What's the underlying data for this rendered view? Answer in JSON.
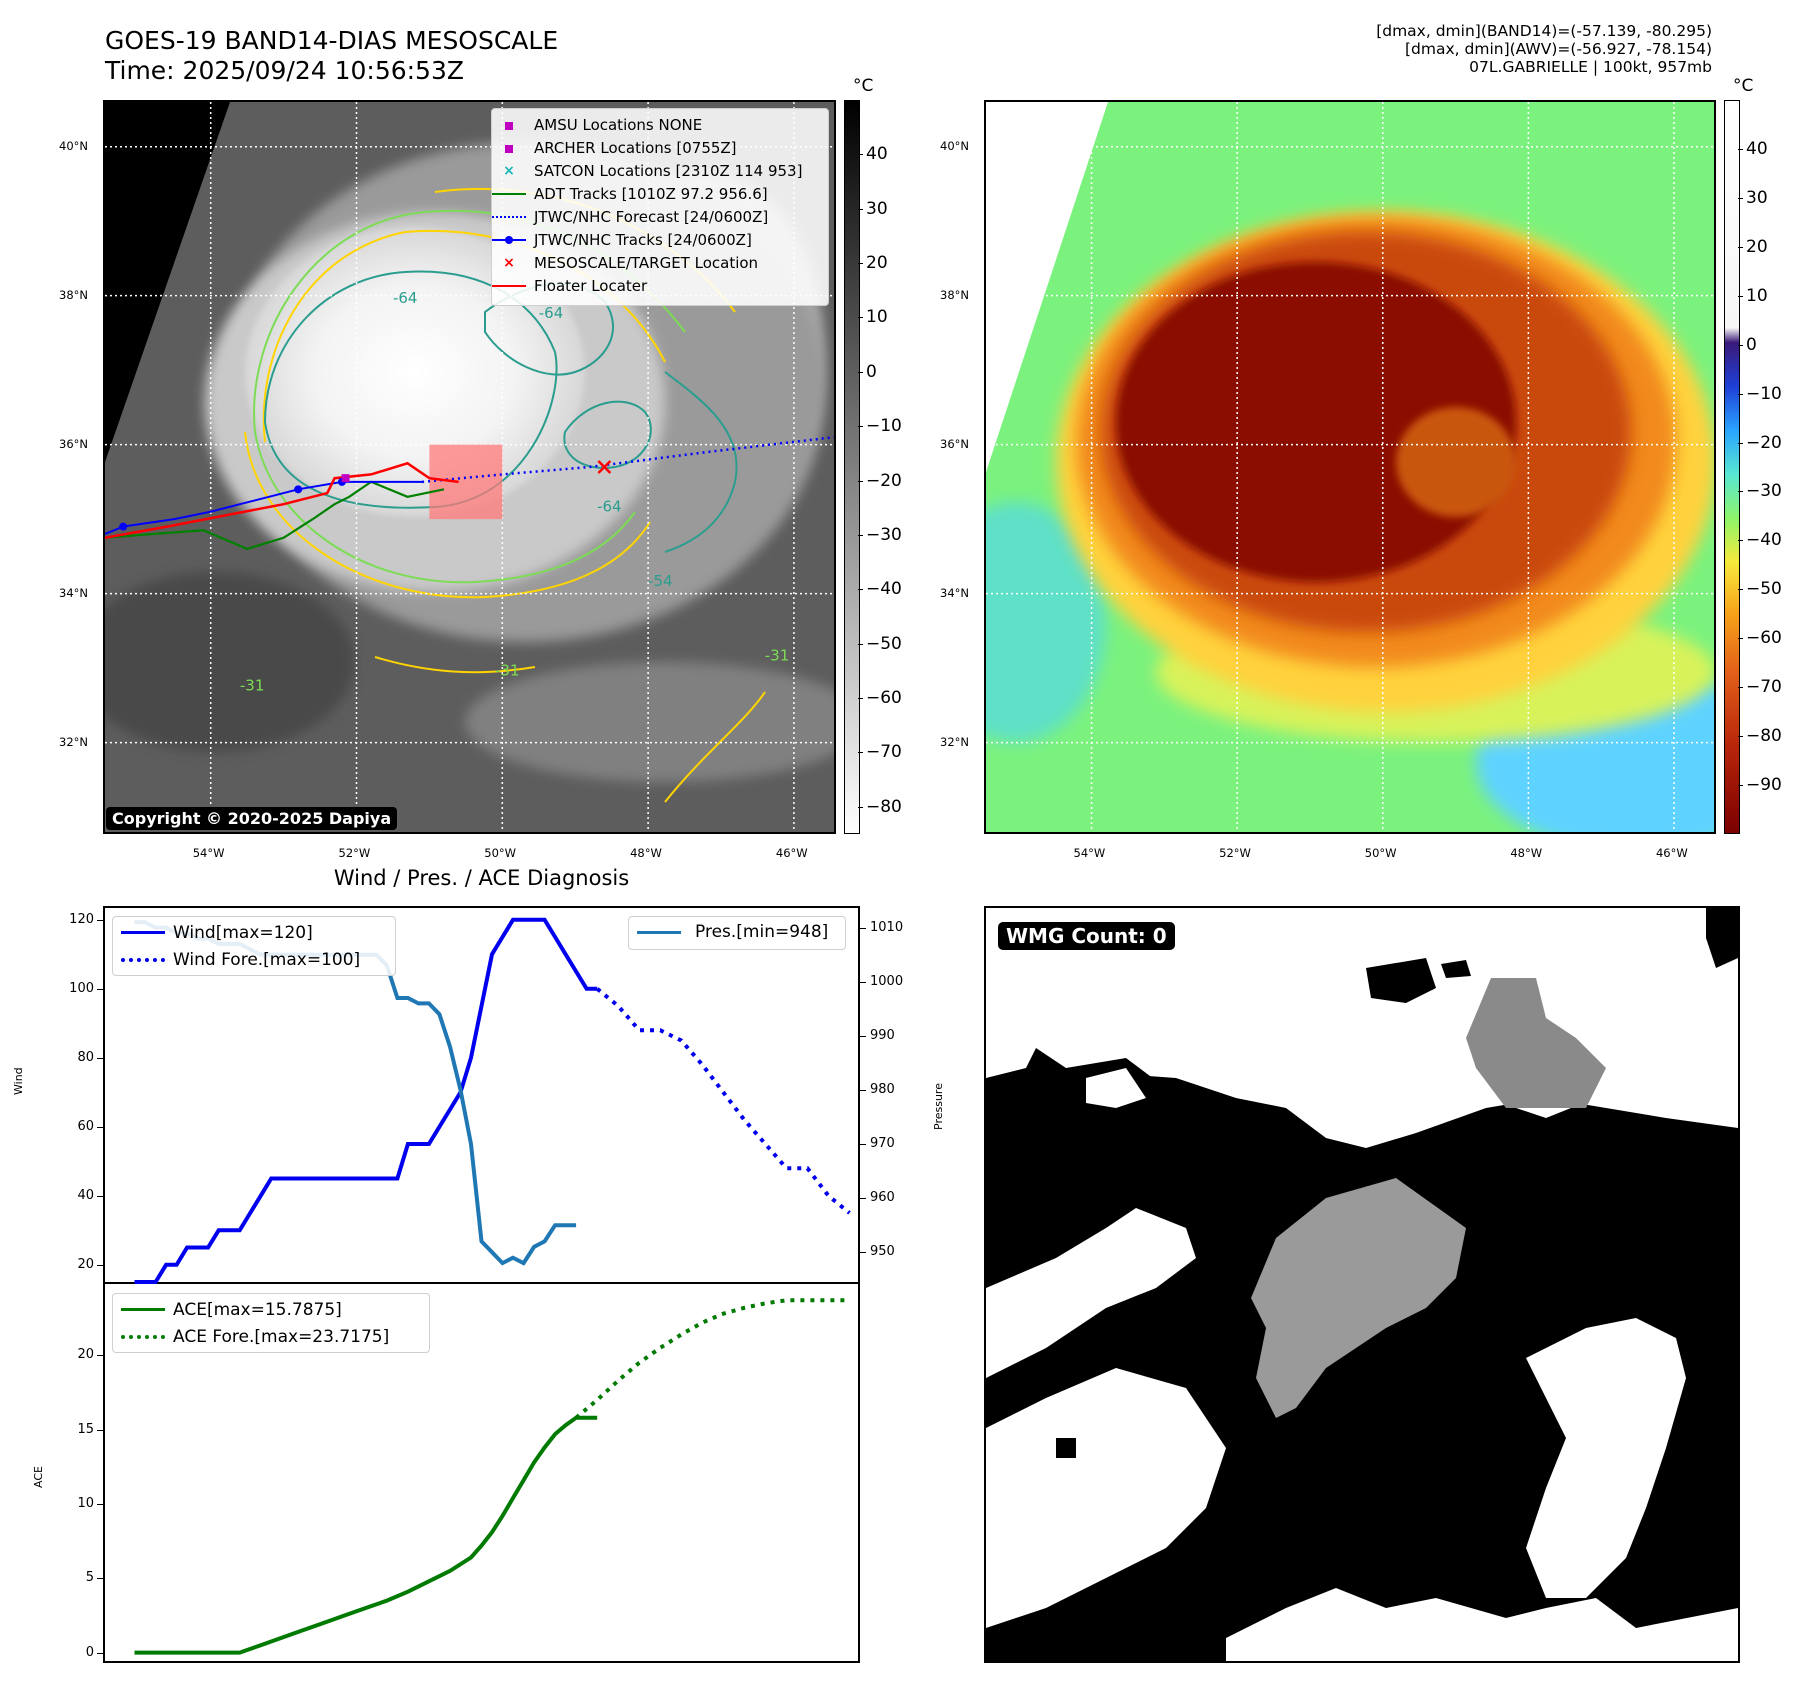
{
  "header": {
    "title_line1": "GOES-19 BAND14-DIAS MESOSCALE",
    "title_line2": "Time: 2025/09/24 10:56:53Z",
    "info_line1": "[dmax, dmin](BAND14)=(-57.139, -80.295)",
    "info_line2": "[dmax, dmin](AWV)=(-56.927, -78.154)",
    "info_line3": "07L.GABRIELLE | 100kt, 957mb"
  },
  "maps": {
    "lat_labels": [
      "40°N",
      "38°N",
      "36°N",
      "34°N",
      "32°N"
    ],
    "lat_values": [
      40,
      38,
      36,
      34,
      32
    ],
    "lon_labels": [
      "54°W",
      "52°W",
      "50°W",
      "48°W",
      "46°W"
    ],
    "lon_values": [
      -54,
      -52,
      -50,
      -48,
      -46
    ],
    "extent": {
      "lon": [
        -55.45,
        -45.45
      ],
      "lat": [
        30.8,
        40.6
      ]
    },
    "colorbar_unit": "°C",
    "copyright": "Copyright © 2020-2025 Dapiya",
    "left_colorbar_ticks": [
      40,
      30,
      20,
      10,
      0,
      -10,
      -20,
      -30,
      -40,
      -50,
      -60,
      -70,
      -80
    ],
    "left_colorbar_range": [
      -85,
      50
    ],
    "right_colorbar_ticks": [
      40,
      30,
      20,
      10,
      0,
      -10,
      -20,
      -30,
      -40,
      -50,
      -60,
      -70,
      -80,
      -90
    ],
    "right_colorbar_range": [
      -100,
      50
    ],
    "contour_labels": [
      "-64",
      "-64",
      "-64",
      "-54",
      "-31",
      "-31",
      "-31"
    ],
    "legend": [
      {
        "label": "AMSU Locations NONE",
        "icon": "magenta-square-marker",
        "color": "#c000c0"
      },
      {
        "label": "ARCHER Locations [0755Z]",
        "icon": "magenta-square-marker",
        "color": "#c000c0"
      },
      {
        "label": "SATCON Locations [2310Z 114 953]",
        "icon": "cyan-x-marker",
        "color": "#17b6b6"
      },
      {
        "label": "ADT Tracks [1010Z 97.2 956.6]",
        "icon": "green-line",
        "color": "#008000"
      },
      {
        "label": "JTWC/NHC Forecast [24/0600Z]",
        "icon": "blue-dotted-line",
        "color": "#0000ff"
      },
      {
        "label": "JTWC/NHC Tracks [24/0600Z]",
        "icon": "blue-line-dot",
        "color": "#0000ff"
      },
      {
        "label": "MESOSCALE/TARGET Location",
        "icon": "red-x-marker",
        "color": "#ff0000"
      },
      {
        "label": "Floater Locater",
        "icon": "red-line",
        "color": "#ff0000"
      }
    ],
    "tracks": {
      "jtwc_track": [
        [
          -55.45,
          34.8
        ],
        [
          -55.2,
          34.9
        ],
        [
          -54.5,
          35.0
        ],
        [
          -54.0,
          35.1
        ],
        [
          -53.6,
          35.2
        ],
        [
          -53.2,
          35.3
        ],
        [
          -52.8,
          35.4
        ],
        [
          -52.2,
          35.5
        ],
        [
          -51.6,
          35.5
        ],
        [
          -51.1,
          35.5
        ]
      ],
      "jtwc_forecast": [
        [
          -51.1,
          35.5
        ],
        [
          -50.0,
          35.6
        ],
        [
          -48.8,
          35.7
        ],
        [
          -47.2,
          35.9
        ],
        [
          -45.45,
          36.1
        ]
      ],
      "adt_track": [
        [
          -55.45,
          34.75
        ],
        [
          -54.8,
          34.8
        ],
        [
          -54.1,
          34.85
        ],
        [
          -53.5,
          34.6
        ],
        [
          -53.0,
          34.75
        ],
        [
          -52.6,
          35.0
        ],
        [
          -52.3,
          35.2
        ],
        [
          -52.1,
          35.3
        ],
        [
          -51.8,
          35.5
        ],
        [
          -51.3,
          35.3
        ],
        [
          -50.8,
          35.4
        ]
      ],
      "floater": [
        [
          -55.45,
          34.75
        ],
        [
          -54.6,
          34.9
        ],
        [
          -53.8,
          35.05
        ],
        [
          -53.0,
          35.2
        ],
        [
          -52.4,
          35.35
        ],
        [
          -52.3,
          35.55
        ],
        [
          -51.8,
          35.6
        ],
        [
          -51.3,
          35.75
        ],
        [
          -51.0,
          35.55
        ],
        [
          -50.6,
          35.5
        ]
      ],
      "target": [
        -48.6,
        35.7
      ],
      "jtwc_points": [
        [
          -55.2,
          34.9
        ],
        [
          -52.8,
          35.4
        ],
        [
          -52.2,
          35.5
        ]
      ]
    }
  },
  "lower_left": {
    "title": "Wind / Pres. / ACE Diagnosis",
    "wind_axis_label": "Wind",
    "pressure_axis_label": "Pressure",
    "ace_axis_label": "ACE",
    "wind_ticks": [
      20,
      40,
      60,
      80,
      100,
      120
    ],
    "pressure_ticks": [
      950,
      960,
      970,
      980,
      990,
      1000,
      1010
    ],
    "ace_ticks": [
      0,
      5,
      10,
      15,
      20
    ],
    "legend_wind": "Wind[max=120]",
    "legend_wind_fore": "Wind Fore.[max=100]",
    "legend_pres": "Pres.[min=948]",
    "legend_ace": "ACE[max=15.7875]",
    "legend_ace_fore": "ACE Fore.[max=23.7175]",
    "colors": {
      "wind": "#0000ee",
      "pressure": "#1f77b4",
      "ace": "#007a00"
    }
  },
  "chart_data": [
    {
      "type": "line",
      "title": "Wind / Pres. / ACE Diagnosis",
      "ylabel": "Wind",
      "y2label": "Pressure",
      "ylim": [
        15,
        124
      ],
      "y2lim": [
        944.5,
        1014
      ],
      "xlim": [
        -1,
        71
      ],
      "series": [
        {
          "name": "Wind[max=120]",
          "axis": "left",
          "style": "solid",
          "x": [
            2,
            4,
            5,
            6,
            7,
            8,
            9,
            10,
            11,
            12,
            13,
            14,
            15,
            16,
            17,
            18,
            19,
            20,
            21,
            22,
            23,
            24,
            25,
            26,
            27,
            28,
            29,
            30,
            31,
            32,
            33,
            34,
            35,
            36,
            37,
            38,
            39,
            40,
            41,
            42,
            43,
            44,
            45,
            46
          ],
          "y": [
            15,
            15,
            20,
            20,
            25,
            25,
            25,
            30,
            30,
            30,
            35,
            40,
            45,
            45,
            45,
            45,
            45,
            45,
            45,
            45,
            45,
            45,
            45,
            45,
            45,
            55,
            55,
            55,
            60,
            65,
            70,
            80,
            95,
            110,
            115,
            120,
            120,
            120,
            120,
            115,
            110,
            105,
            100,
            100
          ]
        },
        {
          "name": "Wind Fore.[max=100]",
          "axis": "left",
          "style": "dotted",
          "x": [
            46,
            48,
            50,
            52,
            54,
            56,
            58,
            60,
            62,
            64,
            66,
            68,
            70
          ],
          "y": [
            100,
            95,
            88,
            88,
            85,
            78,
            70,
            62,
            55,
            48,
            48,
            40,
            35
          ]
        },
        {
          "name": "Pres.[min=948]",
          "axis": "right",
          "style": "solid",
          "x": [
            2,
            3,
            4,
            5,
            6,
            7,
            8,
            9,
            10,
            11,
            12,
            13,
            14,
            15,
            16,
            17,
            18,
            19,
            20,
            21,
            22,
            23,
            24,
            25,
            26,
            27,
            28,
            29,
            30,
            31,
            32,
            33,
            34,
            35,
            36,
            37,
            38,
            39,
            40,
            41,
            42,
            43,
            44
          ],
          "y": [
            1011,
            1011,
            1010,
            1010,
            1009,
            1009,
            1008,
            1008,
            1007,
            1007,
            1007,
            1006,
            1005,
            1005,
            1005,
            1005,
            1005,
            1005,
            1005,
            1005,
            1005,
            1005,
            1005,
            1005,
            1003,
            997,
            997,
            996,
            996,
            994,
            988,
            980,
            970,
            952,
            950,
            948,
            949,
            948,
            951,
            952,
            955,
            955,
            955
          ]
        }
      ]
    },
    {
      "type": "line",
      "ylabel": "ACE",
      "ylim": [
        -0.7,
        24.8
      ],
      "xlim": [
        -1,
        71
      ],
      "series": [
        {
          "name": "ACE[max=15.7875]",
          "style": "solid",
          "x": [
            2,
            4,
            6,
            8,
            10,
            12,
            14,
            16,
            18,
            20,
            22,
            24,
            26,
            28,
            30,
            32,
            34,
            35,
            36,
            37,
            38,
            39,
            40,
            41,
            42,
            43,
            44,
            45,
            46
          ],
          "y": [
            0,
            0,
            0,
            0,
            0,
            0,
            0.5,
            1.0,
            1.5,
            2.0,
            2.5,
            3.0,
            3.5,
            4.1,
            4.8,
            5.5,
            6.4,
            7.2,
            8.1,
            9.2,
            10.4,
            11.6,
            12.8,
            13.8,
            14.7,
            15.3,
            15.8,
            15.8,
            15.8
          ]
        },
        {
          "name": "ACE Fore.[max=23.7175]",
          "style": "dotted",
          "x": [
            44,
            46,
            48,
            50,
            52,
            54,
            56,
            58,
            60,
            62,
            64,
            66,
            68,
            70
          ],
          "y": [
            15.8,
            17.0,
            18.3,
            19.5,
            20.5,
            21.4,
            22.2,
            22.8,
            23.2,
            23.5,
            23.7,
            23.7,
            23.7,
            23.7
          ]
        }
      ]
    }
  ],
  "wmg": {
    "label": "WMG Count: 0"
  }
}
